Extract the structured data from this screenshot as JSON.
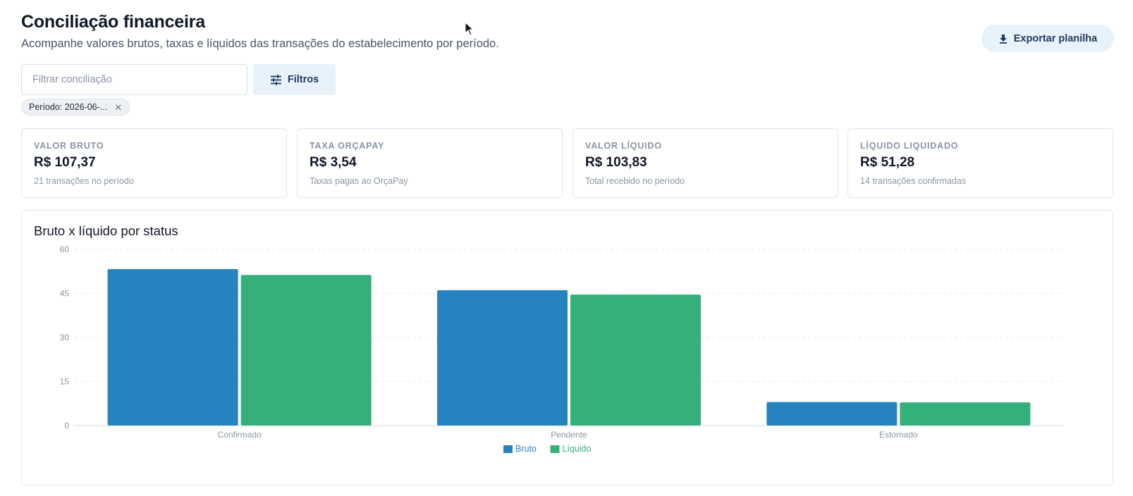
{
  "header": {
    "title": "Conciliação financeira",
    "subtitle": "Acompanhe valores brutos, taxas e líquidos das transações do estabelecimento por período.",
    "export_label": "Exportar planilha"
  },
  "toolbar": {
    "filter_placeholder": "Filtrar conciliação",
    "filters_label": "Filtros",
    "active_chip": "Período: 2026-06-..."
  },
  "cards": [
    {
      "label": "VALOR BRUTO",
      "value": "R$ 107,37",
      "note": "21 transações no período"
    },
    {
      "label": "TAXA ORÇAPAY",
      "value": "R$ 3,54",
      "note": "Taxas pagas ao OrçaPay"
    },
    {
      "label": "VALOR LÍQUIDO",
      "value": "R$ 103,83",
      "note": "Total recebido no período"
    },
    {
      "label": "LÍQUIDO LIQUIDADO",
      "value": "R$ 51,28",
      "note": "14 transações confirmadas"
    }
  ],
  "chart_title": "Bruto x líquido por status",
  "chart_data": {
    "type": "bar",
    "title": "Bruto x líquido por status",
    "categories": [
      "Confirmado",
      "Pendente",
      "Estornado"
    ],
    "series": [
      {
        "name": "Bruto",
        "values": [
          53.3,
          46.1,
          8.0
        ],
        "color": "#2783bf"
      },
      {
        "name": "Líquido",
        "values": [
          51.3,
          44.6,
          7.9
        ],
        "color": "#36b07a"
      }
    ],
    "ylim": [
      0,
      60
    ],
    "yticks": [
      0,
      15,
      30,
      45,
      60
    ],
    "grid": true,
    "legend_position": "bottom"
  },
  "colors": {
    "accent_bg": "#e8f2fa",
    "accent_text": "#1e3a5f",
    "bruto": "#2783bf",
    "liquido": "#36b07a"
  },
  "icons": {
    "export": "download-icon",
    "filters": "sliders-icon",
    "chip_close": "close-icon"
  }
}
